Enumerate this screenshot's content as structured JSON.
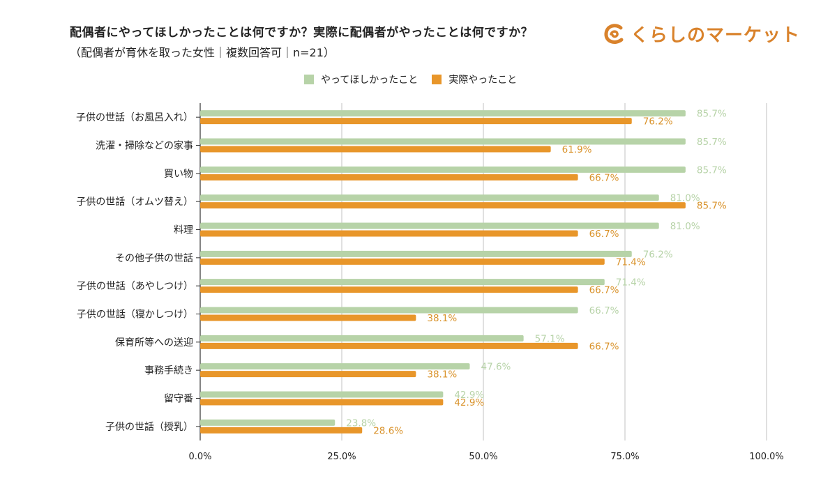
{
  "header": {
    "title": "配偶者にやってほしかったことは何ですか？実際に配偶者がやったことは何ですか？",
    "subtitle": "（配偶者が育休を取った女性｜複数回答可｜n=21）",
    "logo_text": "くらしのマーケット"
  },
  "colors": {
    "wanted": "#b7d3a8",
    "did": "#e8962a",
    "wanted_text": "#b7d3a8",
    "did_text": "#d9922a",
    "logo": "#d9822b",
    "grid": "#cccccc",
    "axis": "#333333"
  },
  "chart_data": {
    "type": "bar",
    "orientation": "horizontal",
    "categories": [
      "子供の世話（お風呂入れ）",
      "洗濯・掃除などの家事",
      "買い物",
      "子供の世話（オムツ替え）",
      "料理",
      "その他子供の世話",
      "子供の世話（あやしつけ）",
      "子供の世話（寝かしつけ）",
      "保育所等への送迎",
      "事務手続き",
      "留守番",
      "子供の世話（授乳）"
    ],
    "series": [
      {
        "name": "やってほしかったこと",
        "values": [
          85.7,
          85.7,
          85.7,
          81.0,
          81.0,
          76.2,
          71.4,
          66.7,
          57.1,
          47.6,
          42.9,
          23.8
        ]
      },
      {
        "name": "実際やったこと",
        "values": [
          76.2,
          61.9,
          66.7,
          85.7,
          66.7,
          71.4,
          66.7,
          38.1,
          66.7,
          38.1,
          42.9,
          28.6
        ]
      }
    ],
    "xlim": [
      0,
      100
    ],
    "xticks": [
      "0.0%",
      "25.0%",
      "50.0%",
      "75.0%",
      "100.0%"
    ],
    "xtick_values": [
      0,
      25,
      50,
      75,
      100
    ],
    "value_suffix": "%",
    "grid": true,
    "legend_position": "top"
  }
}
